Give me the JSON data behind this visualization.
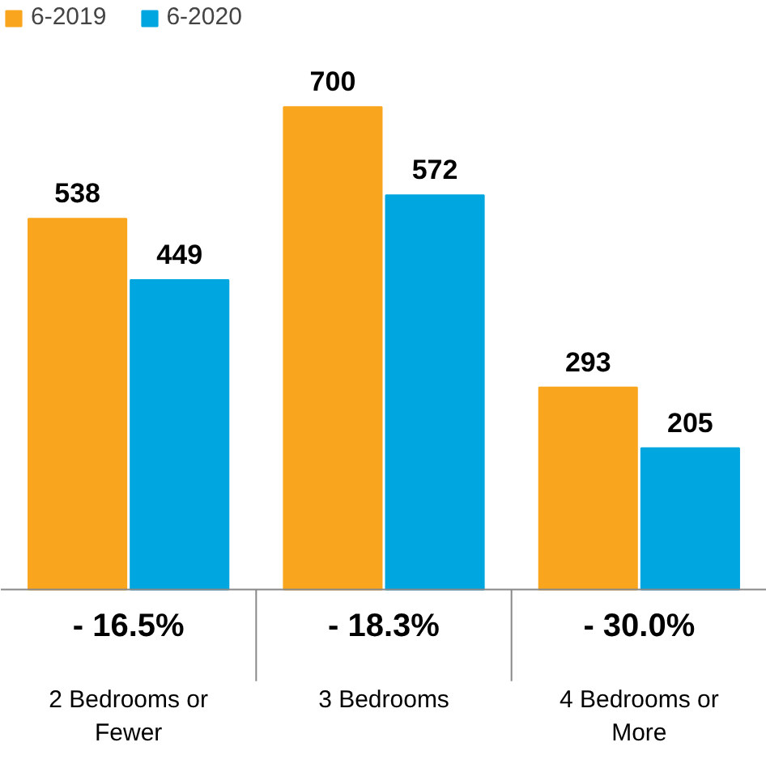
{
  "chart_data": {
    "type": "bar",
    "categories": [
      "2 Bedrooms or Fewer",
      "3 Bedrooms",
      "4 Bedrooms or More"
    ],
    "series": [
      {
        "name": "6-2019",
        "color": "#f9a61e",
        "values": [
          538,
          700,
          293
        ]
      },
      {
        "name": "6-2020",
        "color": "#00a6e0",
        "values": [
          449,
          572,
          205
        ]
      }
    ],
    "data_labels": true,
    "legend": "top left",
    "grid": false,
    "annotations": [
      "- 16.5%",
      "- 18.3%",
      "- 30.0%"
    ]
  }
}
